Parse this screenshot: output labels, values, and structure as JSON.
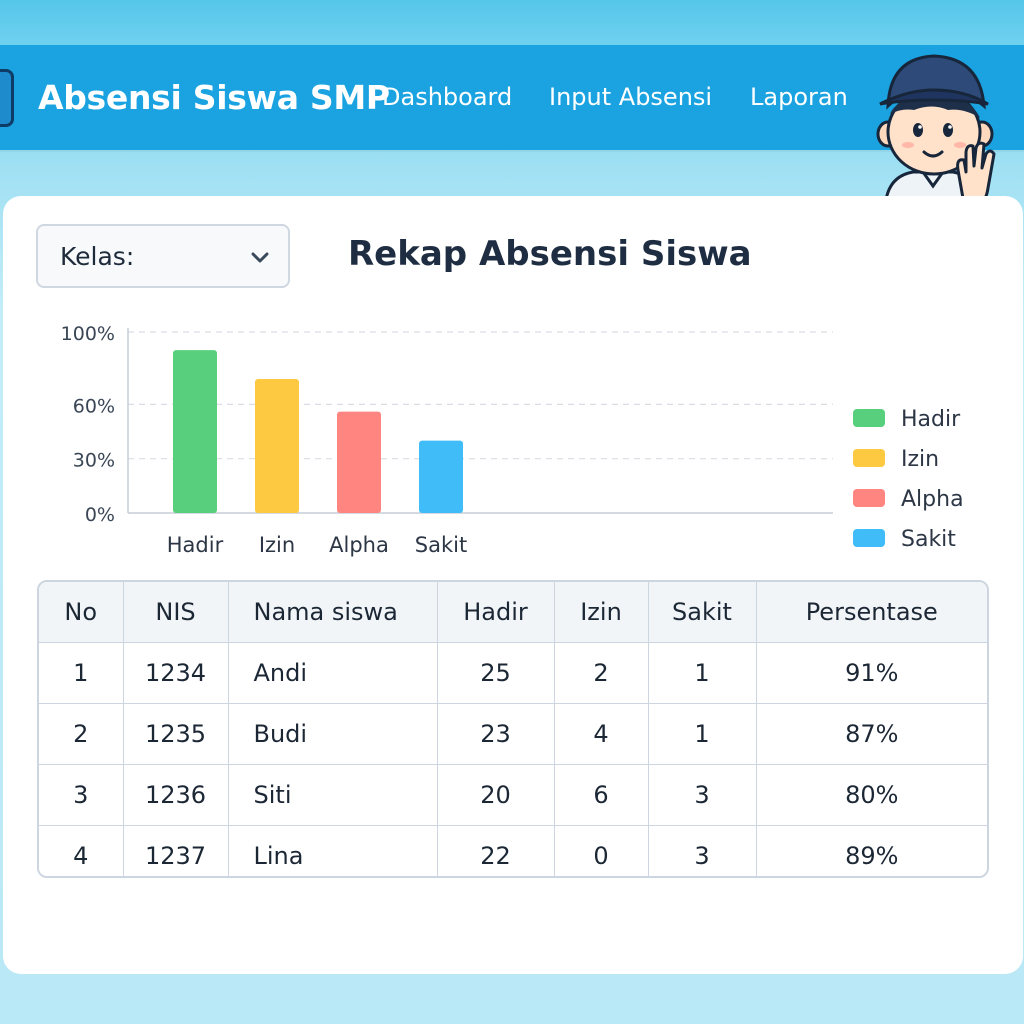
{
  "app": {
    "brand": "Absensi Siswa SMP",
    "nav": [
      "Dashboard",
      "Input Absensi",
      "Laporan"
    ]
  },
  "filter": {
    "label": "Kelas:"
  },
  "page_title": "Rekap Absensi Siswa",
  "icons": {
    "menu": "menu-icon",
    "chevron": "chevron-down-icon",
    "mascot": "student-mascot"
  },
  "colors": {
    "navbar": "#1aa3e0",
    "hadir": "#58cf7c",
    "izin": "#fdc940",
    "alpha": "#ff8680",
    "sakit": "#40bdf9"
  },
  "chart_data": {
    "type": "bar",
    "categories": [
      "Hadir",
      "Izin",
      "Alpha",
      "Sakit"
    ],
    "values": [
      90,
      74,
      56,
      40
    ],
    "colors": [
      "#58cf7c",
      "#fdc940",
      "#ff8680",
      "#40bdf9"
    ],
    "ylim": [
      0,
      100
    ],
    "yticks": [
      "0%",
      "30%",
      "60%",
      "100%"
    ],
    "legend": [
      "Hadir",
      "Izin",
      "Alpha",
      "Sakit"
    ],
    "legend_position": "right",
    "grid": true
  },
  "table": {
    "headers": [
      "No",
      "NIS",
      "Nama siswa",
      "Hadir",
      "Izin",
      "Sakit",
      "Persentase"
    ],
    "rows": [
      [
        "1",
        "1234",
        "Andi",
        "25",
        "2",
        "1",
        "91%"
      ],
      [
        "2",
        "1235",
        "Budi",
        "23",
        "4",
        "1",
        "87%"
      ],
      [
        "3",
        "1236",
        "Siti",
        "20",
        "6",
        "3",
        "80%"
      ],
      [
        "4",
        "1237",
        "Lina",
        "22",
        "0",
        "3",
        "89%"
      ]
    ]
  }
}
